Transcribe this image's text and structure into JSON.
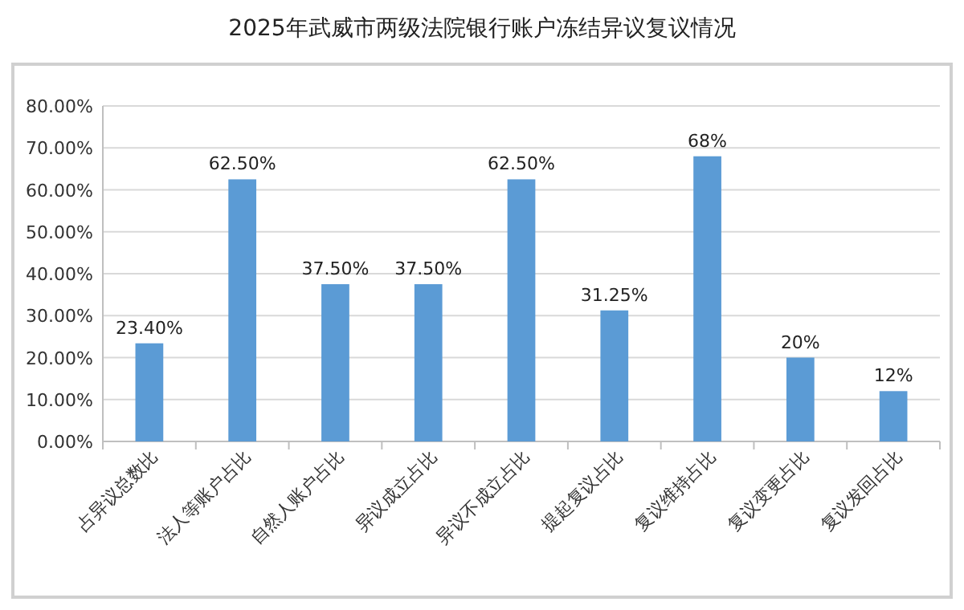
{
  "chart_data": {
    "type": "bar",
    "title": "2025年武威市两级法院银行账户冻结异议复议情况",
    "categories": [
      "占异议总数比",
      "法人等账户占比",
      "自然人账户占比",
      "异议成立占比",
      "异议不成立占比",
      "提起复议占比",
      "复议维持占比",
      "复议变更占比",
      "复议发回占比"
    ],
    "values": [
      23.4,
      62.5,
      37.5,
      37.5,
      62.5,
      31.25,
      68,
      20,
      12
    ],
    "value_labels": [
      "23.40%",
      "62.50%",
      "37.50%",
      "37.50%",
      "62.50%",
      "31.25%",
      "68%",
      "20%",
      "12%"
    ],
    "color": "#5b9bd5",
    "ylim": [
      0,
      80
    ],
    "yticks": [
      {
        "value": 0,
        "label": "0.00%"
      },
      {
        "value": 10,
        "label": "10.00%"
      },
      {
        "value": 20,
        "label": "20.00%"
      },
      {
        "value": 30,
        "label": "30.00%"
      },
      {
        "value": 40,
        "label": "40.00%"
      },
      {
        "value": 50,
        "label": "50.00%"
      },
      {
        "value": 60,
        "label": "60.00%"
      },
      {
        "value": 70,
        "label": "70.00%"
      },
      {
        "value": 80,
        "label": "80.00%"
      }
    ],
    "grid": "y"
  }
}
